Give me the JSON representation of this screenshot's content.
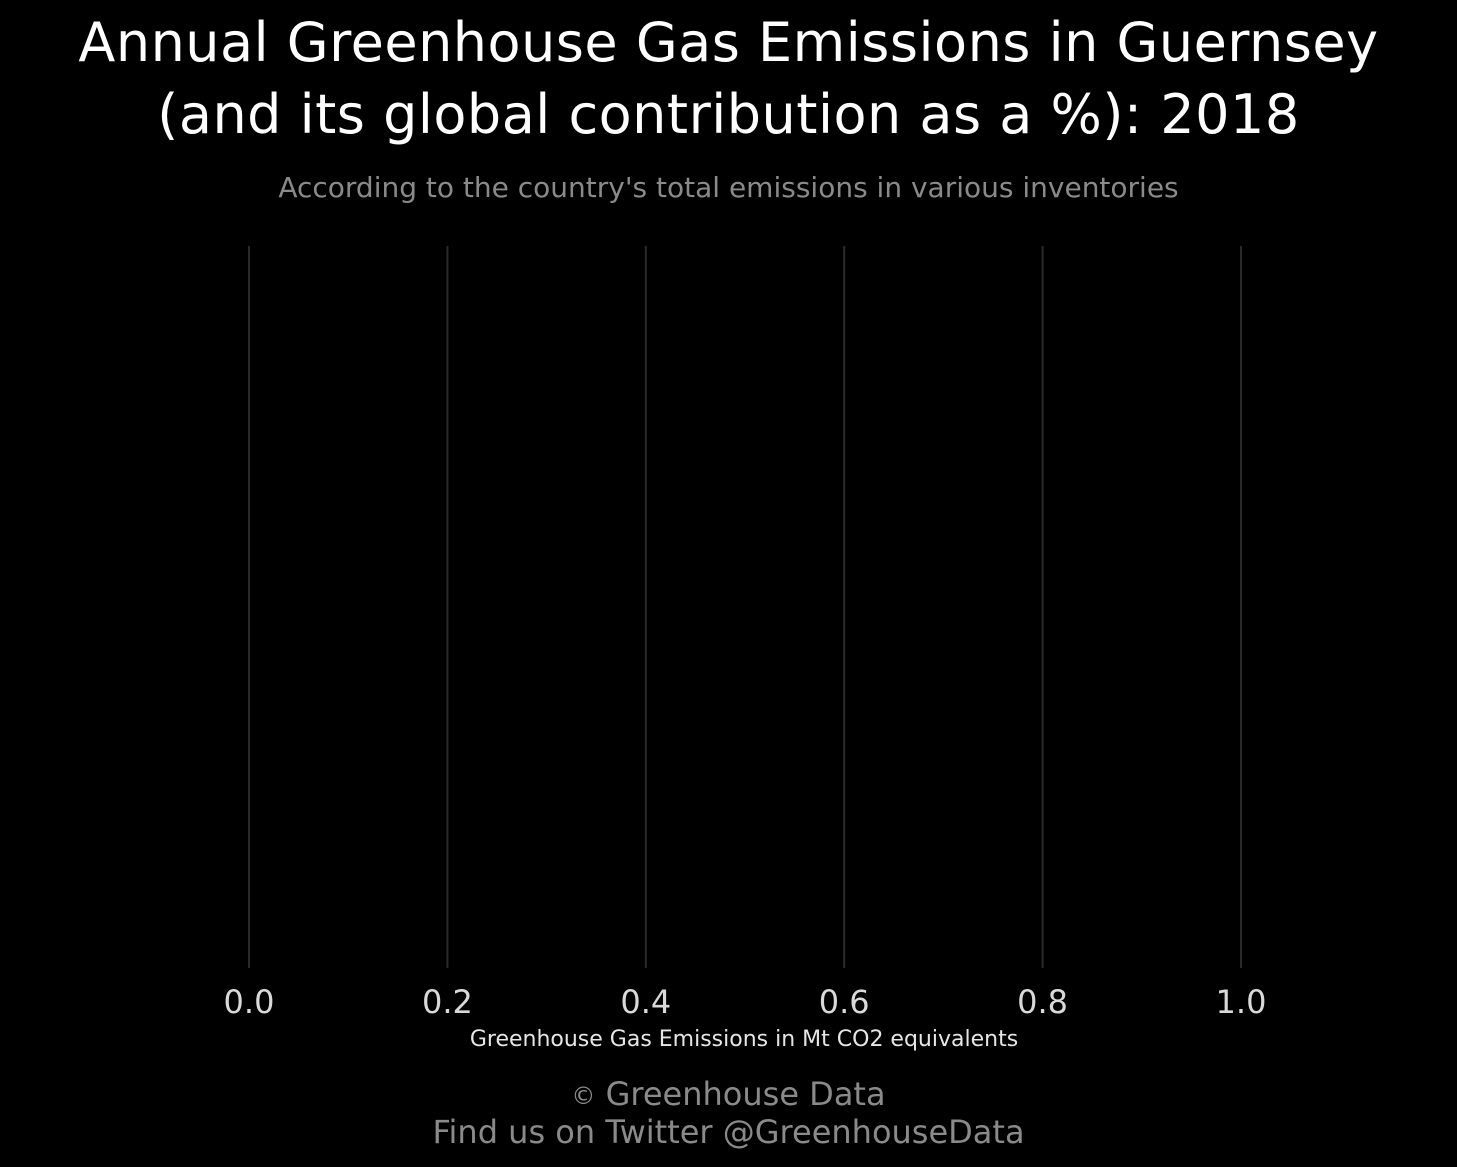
{
  "chart_data": {
    "type": "bar",
    "title_line1": "Annual Greenhouse Gas Emissions in Guernsey",
    "title_line2": "(and its global contribution as a %): 2018",
    "subtitle": "According to the country's total emissions in various inventories",
    "xlabel": "Greenhouse Gas Emissions in Mt CO2 equivalents",
    "ylabel": "",
    "xlim": [
      0.0,
      1.0
    ],
    "x_ticks": [
      0.0,
      0.2,
      0.4,
      0.6,
      0.8,
      1.0
    ],
    "x_tick_labels": [
      "0.0",
      "0.2",
      "0.4",
      "0.6",
      "0.8",
      "1.0"
    ],
    "categories": [],
    "values": [],
    "grid": true,
    "orientation": "horizontal"
  },
  "footer": {
    "copyright_icon": "copyright-icon",
    "copyright_symbol": "©",
    "line1": "Greenhouse Data",
    "line2": "Find us on Twitter @GreenhouseData"
  },
  "colors": {
    "background": "#000000",
    "title": "#ffffff",
    "subtitle": "#8a8a8a",
    "grid": "#2a2a2a",
    "tick_label": "#d9d9d9",
    "footer": "#8a8a8a"
  }
}
